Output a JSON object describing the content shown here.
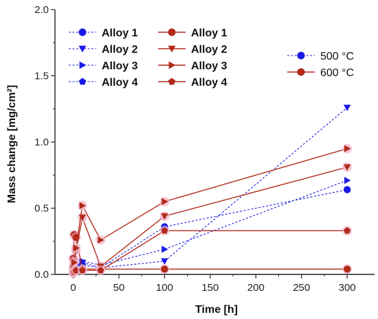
{
  "chart_data": {
    "type": "line",
    "xlabel": "Time [h]",
    "ylabel": "Mass change [mg/cm²]",
    "xlim": [
      -20,
      330
    ],
    "ylim": [
      0.0,
      2.0
    ],
    "xticks": [
      0,
      50,
      100,
      150,
      200,
      250,
      300
    ],
    "yticks": [
      0.0,
      0.5,
      1.0,
      1.5,
      2.0
    ],
    "ytick_labels": [
      "0.0",
      "0.5",
      "1.0",
      "1.5",
      "2.0"
    ],
    "grid": false,
    "temperature_legend": [
      {
        "label": "500 °C",
        "color": "#1a1ae6",
        "line": "dashed"
      },
      {
        "label": "600 °C",
        "color": "#b22a1a",
        "line": "solid"
      }
    ],
    "series": [
      {
        "name": "Alloy 1",
        "group": "500",
        "color": "#1a1ae6",
        "marker": "circle",
        "line": "dashed",
        "x": [
          0,
          1,
          3,
          10,
          30,
          100,
          300
        ],
        "y": [
          0.05,
          0.06,
          0.06,
          0.07,
          0.05,
          0.36,
          0.64
        ]
      },
      {
        "name": "Alloy 2",
        "group": "500",
        "color": "#1a1ae6",
        "marker": "triangle-down",
        "line": "dashed",
        "x": [
          0,
          1,
          3,
          10,
          30,
          100,
          300
        ],
        "y": [
          0.04,
          0.05,
          0.06,
          0.09,
          0.05,
          0.1,
          1.26
        ]
      },
      {
        "name": "Alloy 3",
        "group": "500",
        "color": "#1a1ae6",
        "marker": "triangle-right",
        "line": "dashed",
        "x": [
          0,
          1,
          3,
          10,
          30,
          100,
          300
        ],
        "y": [
          0.03,
          0.05,
          0.07,
          0.1,
          0.07,
          0.19,
          0.71
        ]
      },
      {
        "name": "Alloy 4",
        "group": "500",
        "color": "#1a1ae6",
        "marker": "pentagon",
        "line": "dashed",
        "x": [
          0,
          1,
          3,
          10,
          30,
          100,
          300
        ],
        "y": [
          0.02,
          0.03,
          0.04,
          0.04,
          0.04,
          0.04,
          0.04
        ]
      },
      {
        "name": "Alloy 1",
        "group": "600",
        "color": "#b22a1a",
        "marker": "circle",
        "line": "solid",
        "x": [
          0,
          1,
          3,
          10,
          30,
          100,
          300
        ],
        "y": [
          0.12,
          0.3,
          0.28,
          0.04,
          0.04,
          0.04,
          0.04
        ]
      },
      {
        "name": "Alloy 2",
        "group": "600",
        "color": "#b22a1a",
        "marker": "triangle-down",
        "line": "solid",
        "x": [
          0,
          1,
          3,
          10,
          30,
          100,
          300
        ],
        "y": [
          0.05,
          0.1,
          0.18,
          0.43,
          0.06,
          0.44,
          0.81
        ]
      },
      {
        "name": "Alloy 3",
        "group": "600",
        "color": "#b22a1a",
        "marker": "triangle-right",
        "line": "solid",
        "x": [
          0,
          1,
          3,
          10,
          30,
          100,
          300
        ],
        "y": [
          0.02,
          0.09,
          0.2,
          0.52,
          0.26,
          0.55,
          0.95
        ]
      },
      {
        "name": "Alloy 4",
        "group": "600",
        "color": "#b22a1a",
        "marker": "pentagon",
        "line": "solid",
        "x": [
          0,
          1,
          3,
          10,
          30,
          100,
          300
        ],
        "y": [
          0.01,
          0.02,
          0.03,
          0.03,
          0.03,
          0.33,
          0.33
        ]
      }
    ]
  }
}
